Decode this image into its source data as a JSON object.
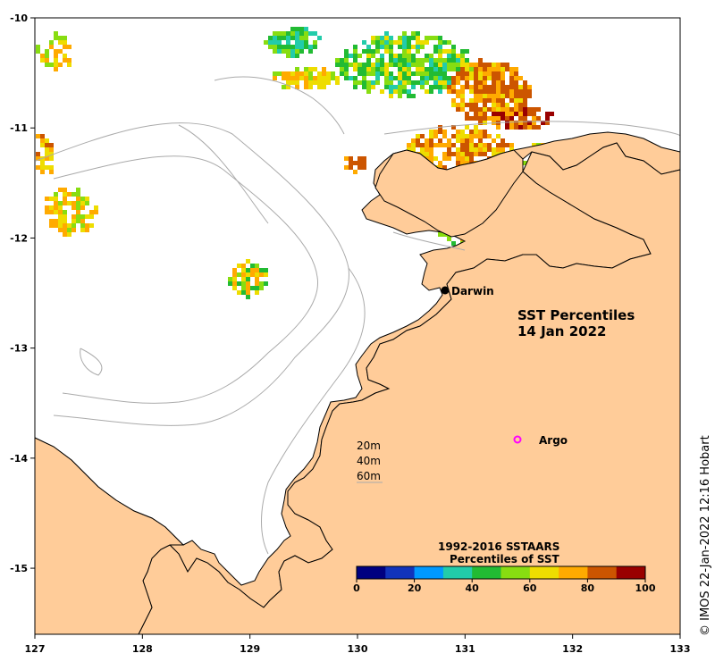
{
  "map": {
    "title_line1": "SST Percentiles",
    "title_line2": "14 Jan 2022",
    "x_ticks": [
      "127",
      "128",
      "129",
      "130",
      "131",
      "132",
      "133"
    ],
    "y_ticks": [
      "-10",
      "-11",
      "-12",
      "-13",
      "-14",
      "-15"
    ],
    "x_range": [
      127,
      133
    ],
    "y_range": [
      -15.6,
      -10
    ],
    "land_color": "#ffcc99",
    "sea_color": "#ffffff"
  },
  "places": {
    "darwin": {
      "label": "Darwin",
      "lon": 130.84,
      "lat": -12.46
    },
    "argo": {
      "label": "Argo",
      "lon": 131.5,
      "lat": -13.8,
      "color": "#ff00ff"
    }
  },
  "depth_legend": [
    "20m",
    "40m",
    "60m"
  ],
  "colorbar": {
    "title_line1": "1992-2016 SSTAARS",
    "title_line2": "Percentiles of SST",
    "ticks": [
      "0",
      "20",
      "40",
      "60",
      "80",
      "100"
    ],
    "colors": [
      "#000080",
      "#1133bb",
      "#0099ff",
      "#22ccaa",
      "#22bb33",
      "#88dd11",
      "#eedd00",
      "#ffaa00",
      "#cc5500",
      "#990000"
    ]
  },
  "credit": "© IMOS 22-Jan-2022 12:16 Hobart"
}
